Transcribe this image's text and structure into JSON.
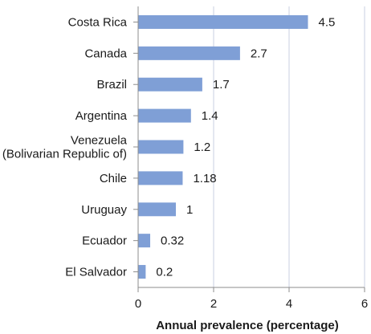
{
  "chart_data": {
    "type": "bar",
    "orientation": "horizontal",
    "categories": [
      [
        "Costa Rica"
      ],
      [
        "Canada"
      ],
      [
        "Brazil"
      ],
      [
        "Argentina"
      ],
      [
        "Venezuela",
        "(Bolivarian Republic of)"
      ],
      [
        "Chile"
      ],
      [
        "Uruguay"
      ],
      [
        "Ecuador"
      ],
      [
        "El Salvador"
      ]
    ],
    "values": [
      4.5,
      2.7,
      1.7,
      1.4,
      1.2,
      1.18,
      1,
      0.32,
      0.2
    ],
    "value_labels": [
      "4.5",
      "2.7",
      "1.7",
      "1.4",
      "1.2",
      "1.18",
      "1",
      "0.32",
      "0.2"
    ],
    "xlabel": "Annual prevalence (percentage)",
    "xlim": [
      0,
      6
    ],
    "xticks": [
      "0",
      "2",
      "4",
      "6"
    ],
    "grid": "vertical",
    "legend": "none",
    "colors": {
      "bar": "#7f9fd6",
      "grid": "#c9cfe0",
      "axis": "#8c8c8c",
      "text": "#1a1a1a"
    }
  }
}
